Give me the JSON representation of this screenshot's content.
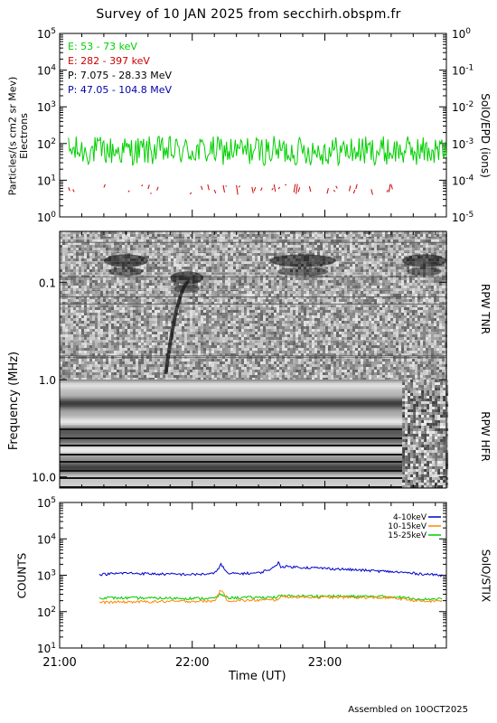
{
  "title": "Survey of 10 JAN 2025 from secchirh.obspm.fr",
  "footer": "Assembled on 10OCT2025",
  "chart_data": [
    {
      "type": "line",
      "panel": "epd",
      "ylabel_left": "Particles/(s cm2 sr Mev)",
      "ylabel_left_sub": "Electrons",
      "ylabel_right": "SolO/EPD (ions)",
      "yscale": "log",
      "ylim": [
        1,
        100000
      ],
      "yticks": [
        "10^0",
        "10^1",
        "10^2",
        "10^3",
        "10^4",
        "10^5"
      ],
      "ylim_right": [
        1e-05,
        1
      ],
      "yticks_right": [
        "10^-5",
        "10^-4",
        "10^-3",
        "10^-2",
        "10^-1",
        "10^0"
      ],
      "xlim": [
        "21:00",
        "23:55"
      ],
      "legend": [
        {
          "name": "E: 53 - 73 keV",
          "color": "#00d000"
        },
        {
          "name": "E: 282 - 397 keV",
          "color": "#cc0000"
        },
        {
          "name": "P: 7.075 - 28.33 MeV",
          "color": "#000000"
        },
        {
          "name": "P: 47.05 - 104.8 MeV",
          "color": "#0000aa"
        }
      ],
      "series": [
        {
          "name": "E: 53 - 73 keV",
          "color": "#00d000",
          "level": 65,
          "range": [
            25,
            160
          ],
          "start": "21:04",
          "end": "23:55"
        },
        {
          "name": "E: 282 - 397 keV",
          "color": "#cc0000",
          "level": 5,
          "range": [
            4,
            8
          ],
          "start": "21:04",
          "end": "23:30",
          "sparse": true
        }
      ]
    },
    {
      "type": "heatmap",
      "panel": "rpw",
      "ylabel": "Frequency (MHz)",
      "yscale": "log",
      "ylim": [
        0.03,
        13
      ],
      "yticks": [
        "0.1",
        "1.0",
        "10.0"
      ],
      "labels_right": [
        "RPW TNR",
        "RPW HFR"
      ],
      "xlim": [
        "21:00",
        "23:55"
      ],
      "features": [
        {
          "start": "21:20",
          "end": "21:40",
          "freq": 0.06
        },
        {
          "start": "21:50",
          "end": "22:05",
          "freq": 0.09
        },
        {
          "start": "22:35",
          "end": "23:05",
          "freq": 0.06
        },
        {
          "start": "23:35",
          "end": "23:55",
          "freq": 0.06
        }
      ]
    },
    {
      "type": "line",
      "panel": "stix",
      "ylabel": "COUNTS",
      "ylabel_right": "SolO/STIX",
      "yscale": "log",
      "ylim": [
        10,
        100000
      ],
      "yticks": [
        "10^1",
        "10^2",
        "10^3",
        "10^4",
        "10^5"
      ],
      "xlabel": "Time (UT)",
      "xticks": [
        "21:00",
        "22:00",
        "23:00"
      ],
      "xlim": [
        "21:00",
        "23:55"
      ],
      "legend": [
        {
          "name": "4-10keV",
          "color": "#0000cc"
        },
        {
          "name": "10-15keV",
          "color": "#ff8800"
        },
        {
          "name": "15-25keV",
          "color": "#00cc00"
        }
      ],
      "series": [
        {
          "name": "4-10keV",
          "color": "#0000cc",
          "x": [
            "21:18",
            "21:30",
            "21:45",
            "22:00",
            "22:10",
            "22:13",
            "22:16",
            "22:30",
            "22:37",
            "22:39",
            "22:40",
            "23:00",
            "23:30",
            "23:53"
          ],
          "values": [
            1050,
            1150,
            1080,
            1050,
            1100,
            2000,
            1100,
            1150,
            1600,
            2300,
            1750,
            1550,
            1250,
            1000
          ]
        },
        {
          "name": "15-25keV",
          "color": "#00cc00",
          "x": [
            "21:18",
            "21:45",
            "22:10",
            "22:13",
            "22:16",
            "22:38",
            "22:40",
            "23:30",
            "23:45",
            "23:53"
          ],
          "values": [
            240,
            235,
            230,
            300,
            240,
            250,
            270,
            260,
            220,
            230
          ]
        },
        {
          "name": "10-15keV",
          "color": "#ff8800",
          "x": [
            "21:18",
            "21:45",
            "22:10",
            "22:13",
            "22:16",
            "22:38",
            "22:40",
            "23:30",
            "23:45",
            "23:53"
          ],
          "values": [
            180,
            190,
            195,
            400,
            200,
            210,
            255,
            240,
            190,
            200
          ]
        }
      ]
    }
  ]
}
